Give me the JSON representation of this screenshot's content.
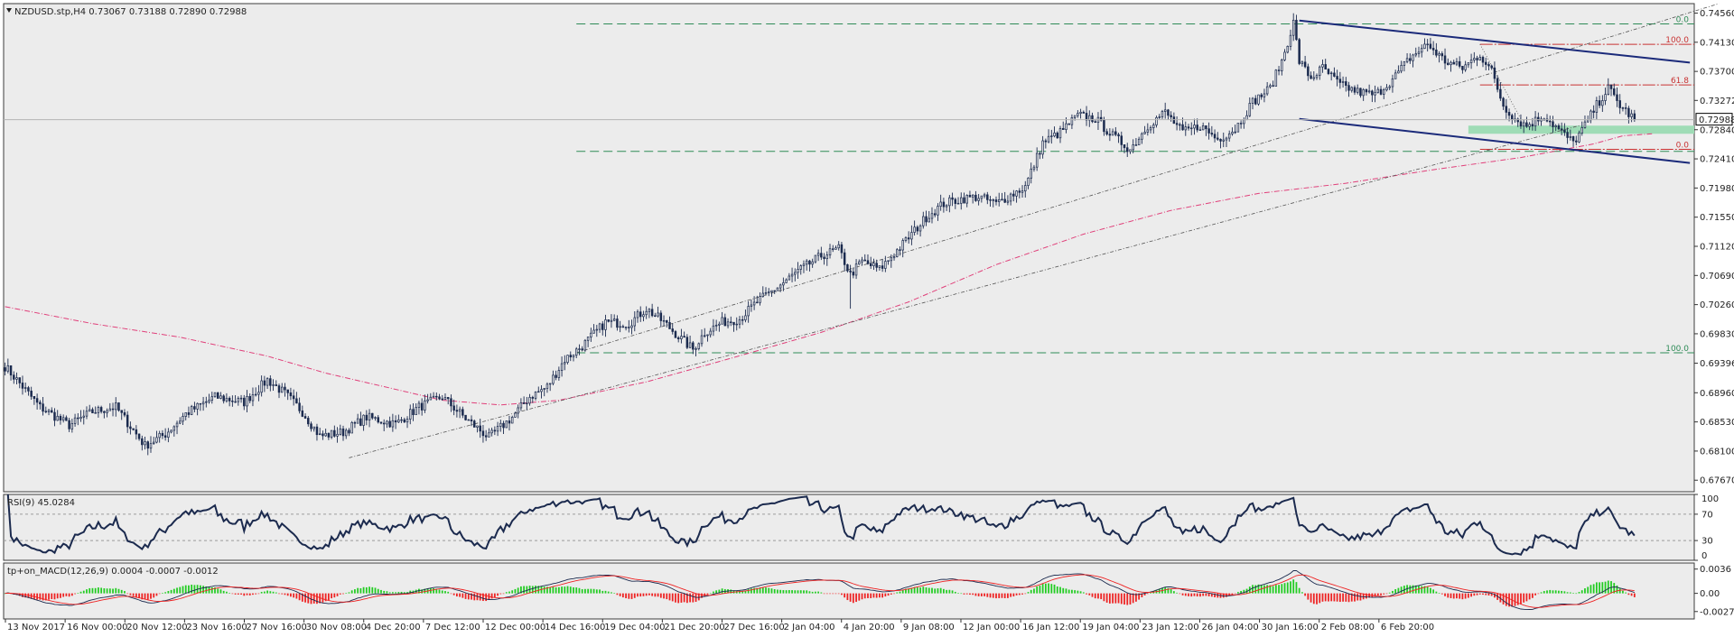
{
  "colors": {
    "background": "#ececec",
    "border": "#3c3c3c",
    "candle": "#1b2a4e",
    "channel": "#1b2a7a",
    "ma": "#e0407a",
    "fib_green": "#2e8b57",
    "fib_red": "#c83232",
    "zone": "#9fdcb6",
    "macd_pos": "#22cc22",
    "macd_neg": "#ee2222",
    "signal_line": "#ee2222",
    "macd_line": "#1b2a4e",
    "price_tag_bg": "#ffffff"
  },
  "chart_data": [
    {
      "type": "candlestick",
      "title": "NZDUSD.stp,H4  0.73067 0.73188 0.72890 0.72988",
      "symbol": "NZDUSD.stp",
      "timeframe": "H4",
      "ohlc_header": {
        "open": 0.73067,
        "high": 0.73188,
        "low": 0.7289,
        "close": 0.72988
      },
      "current_price": "0.72988",
      "ylim": [
        0.675,
        0.747
      ],
      "yticks": [
        "0.74560",
        "0.74130",
        "0.73700",
        "0.73272",
        "0.72840",
        "0.72410",
        "0.71980",
        "0.71550",
        "0.71120",
        "0.70690",
        "0.70260",
        "0.69830",
        "0.69396",
        "0.68960",
        "0.68530",
        "0.68100",
        "0.67670"
      ],
      "xticks": [
        "13 Nov 2017",
        "16 Nov 00:00",
        "20 Nov 12:00",
        "23 Nov 16:00",
        "27 Nov 16:00",
        "30 Nov 08:00",
        "4 Dec 20:00",
        "7 Dec 12:00",
        "12 Dec 00:00",
        "14 Dec 16:00",
        "19 Dec 04:00",
        "21 Dec 20:00",
        "27 Dec 16:00",
        "2 Jan 04:00",
        "4 Jan 20:00",
        "9 Jan 08:00",
        "12 Jan 00:00",
        "16 Jan 12:00",
        "19 Jan 04:00",
        "23 Jan 12:00",
        "26 Jan 04:00",
        "30 Jan 16:00",
        "2 Feb 08:00",
        "6 Feb 20:00"
      ],
      "price_path": [
        [
          0,
          0.6935
        ],
        [
          12,
          0.6875
        ],
        [
          22,
          0.6848
        ],
        [
          30,
          0.6868
        ],
        [
          38,
          0.6875
        ],
        [
          42,
          0.6852
        ],
        [
          48,
          0.6818
        ],
        [
          55,
          0.6835
        ],
        [
          62,
          0.6865
        ],
        [
          72,
          0.689
        ],
        [
          82,
          0.6882
        ],
        [
          90,
          0.6915
        ],
        [
          96,
          0.6895
        ],
        [
          102,
          0.6868
        ],
        [
          108,
          0.6832
        ],
        [
          116,
          0.6838
        ],
        [
          124,
          0.686
        ],
        [
          134,
          0.685
        ],
        [
          142,
          0.6875
        ],
        [
          150,
          0.689
        ],
        [
          158,
          0.6858
        ],
        [
          166,
          0.683
        ],
        [
          174,
          0.686
        ],
        [
          180,
          0.689
        ],
        [
          186,
          0.6905
        ],
        [
          192,
          0.6945
        ],
        [
          198,
          0.6965
        ],
        [
          206,
          0.7
        ],
        [
          214,
          0.6998
        ],
        [
          220,
          0.702
        ],
        [
          226,
          0.7
        ],
        [
          232,
          0.6975
        ],
        [
          236,
          0.696
        ],
        [
          240,
          0.6985
        ],
        [
          246,
          0.7
        ],
        [
          252,
          0.7005
        ],
        [
          258,
          0.703
        ],
        [
          266,
          0.7055
        ],
        [
          272,
          0.7075
        ],
        [
          280,
          0.7098
        ],
        [
          286,
          0.7108
        ],
        [
          290,
          0.707
        ],
        [
          294,
          0.709
        ],
        [
          300,
          0.7078
        ],
        [
          308,
          0.7115
        ],
        [
          316,
          0.7155
        ],
        [
          322,
          0.7175
        ],
        [
          328,
          0.7182
        ],
        [
          334,
          0.7185
        ],
        [
          340,
          0.7175
        ],
        [
          346,
          0.719
        ],
        [
          350,
          0.72
        ],
        [
          356,
          0.7265
        ],
        [
          362,
          0.728
        ],
        [
          368,
          0.7305
        ],
        [
          374,
          0.73
        ],
        [
          380,
          0.7275
        ],
        [
          386,
          0.7255
        ],
        [
          392,
          0.729
        ],
        [
          398,
          0.731
        ],
        [
          404,
          0.728
        ],
        [
          410,
          0.729
        ],
        [
          416,
          0.727
        ],
        [
          422,
          0.7285
        ],
        [
          428,
          0.7325
        ],
        [
          434,
          0.7345
        ],
        [
          438,
          0.7385
        ],
        [
          442,
          0.7442
        ],
        [
          444,
          0.7385
        ],
        [
          448,
          0.736
        ],
        [
          452,
          0.7375
        ],
        [
          458,
          0.735
        ],
        [
          464,
          0.734
        ],
        [
          470,
          0.7335
        ],
        [
          476,
          0.7358
        ],
        [
          482,
          0.739
        ],
        [
          488,
          0.741
        ],
        [
          494,
          0.7385
        ],
        [
          500,
          0.7375
        ],
        [
          506,
          0.7395
        ],
        [
          510,
          0.737
        ],
        [
          514,
          0.732
        ],
        [
          518,
          0.73
        ],
        [
          522,
          0.729
        ],
        [
          528,
          0.7305
        ],
        [
          534,
          0.728
        ],
        [
          538,
          0.7265
        ],
        [
          542,
          0.729
        ],
        [
          546,
          0.732
        ],
        [
          550,
          0.7345
        ],
        [
          554,
          0.732
        ],
        [
          559,
          0.7299
        ]
      ],
      "ma_points": [
        [
          0,
          0.7023
        ],
        [
          30,
          0.6998
        ],
        [
          60,
          0.6978
        ],
        [
          90,
          0.695
        ],
        [
          110,
          0.6925
        ],
        [
          130,
          0.6905
        ],
        [
          150,
          0.6885
        ],
        [
          170,
          0.6878
        ],
        [
          190,
          0.6885
        ],
        [
          220,
          0.6912
        ],
        [
          250,
          0.6948
        ],
        [
          280,
          0.6985
        ],
        [
          310,
          0.703
        ],
        [
          340,
          0.7085
        ],
        [
          370,
          0.713
        ],
        [
          400,
          0.7165
        ],
        [
          430,
          0.719
        ],
        [
          460,
          0.7205
        ],
        [
          490,
          0.7225
        ],
        [
          520,
          0.7243
        ],
        [
          545,
          0.7263
        ],
        [
          555,
          0.7275
        ],
        [
          565,
          0.7278
        ]
      ],
      "trendlines": [
        {
          "name": "uptrend-lower",
          "from": [
            118,
            0.68
          ],
          "to": [
            540,
            0.729
          ],
          "style": "dashed"
        },
        {
          "name": "uptrend-upper",
          "from": [
            196,
            0.6955
          ],
          "to": [
            588,
            0.747
          ],
          "style": "dashed"
        },
        {
          "name": "channel-upper",
          "from": [
            444,
            0.7445
          ],
          "to": [
            578,
            0.7383
          ],
          "style": "solid"
        },
        {
          "name": "channel-lower",
          "from": [
            444,
            0.73
          ],
          "to": [
            578,
            0.7235
          ],
          "style": "solid"
        }
      ],
      "fib_levels_green": [
        {
          "label": "0.0",
          "value": 0.744,
          "from": 196
        },
        {
          "label": "100.0",
          "value": 0.6955,
          "from": 196
        }
      ],
      "fib_levels_red": [
        {
          "label": "100.0",
          "value": 0.741,
          "from": 506
        },
        {
          "label": "61.8",
          "value": 0.735,
          "from": 506
        },
        {
          "label": "0.0",
          "value": 0.7255,
          "from": 506
        }
      ],
      "support_zone": {
        "from": 502,
        "ymin": 0.7278,
        "ymax": 0.729
      },
      "dashed_green_low": 0.7252
    },
    {
      "type": "line",
      "title": "RSI(9) 45.0284",
      "indicator": "RSI(9)",
      "value": 45.0284,
      "ylim": [
        0,
        100
      ],
      "levels": [
        30,
        70
      ],
      "yticks": [
        "100",
        "70",
        "30",
        "0"
      ]
    },
    {
      "type": "histogram+lines",
      "title": "tp+on_MACD(12,26,9) 0.0004 -0.0007 -0.0012",
      "indicator": "tp+on_MACD(12,26,9)",
      "values": [
        0.0004,
        -0.0007,
        -0.0012
      ],
      "ylim": [
        -0.0038,
        0.0045
      ],
      "yticks": [
        "0.0036",
        "0.00",
        "-0.0027"
      ]
    }
  ]
}
